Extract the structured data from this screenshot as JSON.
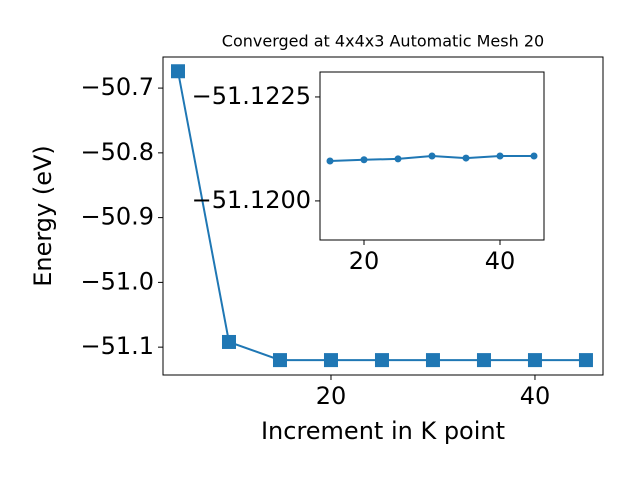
{
  "chart_data": [
    {
      "type": "line",
      "title": "Converged at 4x4x3 Automatic Mesh 20",
      "x_label": "Increment in K point",
      "y_label": "Energy (eV)",
      "x": [
        5,
        10,
        15,
        20,
        25,
        30,
        35,
        40,
        45
      ],
      "series": [
        {
          "color": "#1f77b4",
          "marker": "square",
          "values": [
            -50.674,
            -51.092,
            -51.12,
            -51.12,
            -51.12,
            -51.12,
            -51.12,
            -51.12,
            -51.12
          ]
        }
      ],
      "xlim": [
        3.53,
        46.67
      ],
      "ylim": [
        -51.143,
        -50.652
      ],
      "xticks": [
        20,
        40
      ],
      "yticks": [
        {
          "value": -50.7,
          "label": "−50.7"
        },
        {
          "value": -50.8,
          "label": "−50.8"
        },
        {
          "value": -50.9,
          "label": "−50.9"
        },
        {
          "value": -51.0,
          "label": "−51.0"
        },
        {
          "value": -51.1,
          "label": "−51.1"
        }
      ]
    },
    {
      "type": "line",
      "x": [
        15,
        20,
        25,
        30,
        35,
        40,
        45
      ],
      "series": [
        {
          "color": "#1f77b4",
          "marker": "circle",
          "values": [
            -51.12096,
            -51.12099,
            -51.12101,
            -51.12108,
            -51.12103,
            -51.12108,
            -51.12108
          ]
        }
      ],
      "xlim": [
        13.53,
        46.47
      ],
      "ylim": [
        -51.11906,
        -51.1231
      ],
      "xticks": [
        20,
        40
      ],
      "yticks": [
        {
          "value": -51.1225,
          "label": "−51.1225"
        },
        {
          "value": -51.12,
          "label": "−51.1200"
        }
      ]
    }
  ]
}
